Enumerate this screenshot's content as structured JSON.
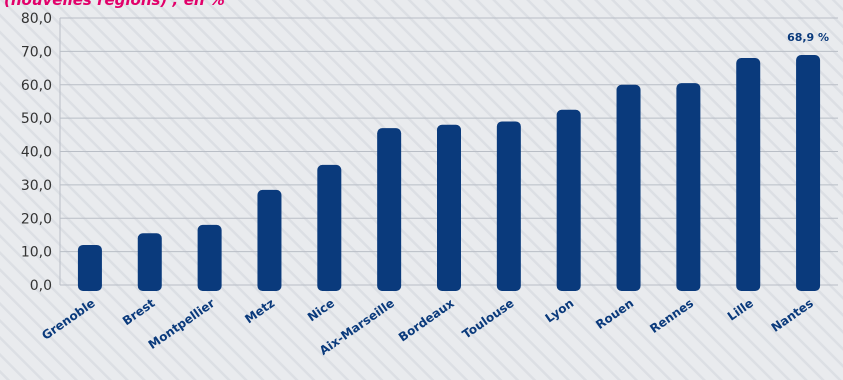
{
  "chart_data": {
    "type": "bar",
    "title": "(nouvelles régions) ; en %",
    "categories": [
      "Grenoble",
      "Brest",
      "Montpellier",
      "Metz",
      "Nice",
      "Aix-Marseille",
      "Bordeaux",
      "Toulouse",
      "Lyon",
      "Rouen",
      "Rennes",
      "Lille",
      "Nantes"
    ],
    "values": [
      12.0,
      15.5,
      18.0,
      28.5,
      36.0,
      47.0,
      48.0,
      49.0,
      52.5,
      60.0,
      60.5,
      68.0,
      68.9
    ],
    "data_labels": [
      {
        "index": 12,
        "text": "68,9 %"
      }
    ],
    "ylim": [
      0,
      80
    ],
    "yticks": [
      "0,0",
      "10,0",
      "20,0",
      "30,0",
      "40,0",
      "50,0",
      "60,0",
      "70,0",
      "80,0"
    ],
    "grid": true,
    "xlabel": "",
    "ylabel": "",
    "colors": {
      "bar": "#0a3a7c",
      "title": "#e2006a",
      "grid": "#b9bec6",
      "text": "#333333",
      "label": "#0a3a7c"
    }
  }
}
